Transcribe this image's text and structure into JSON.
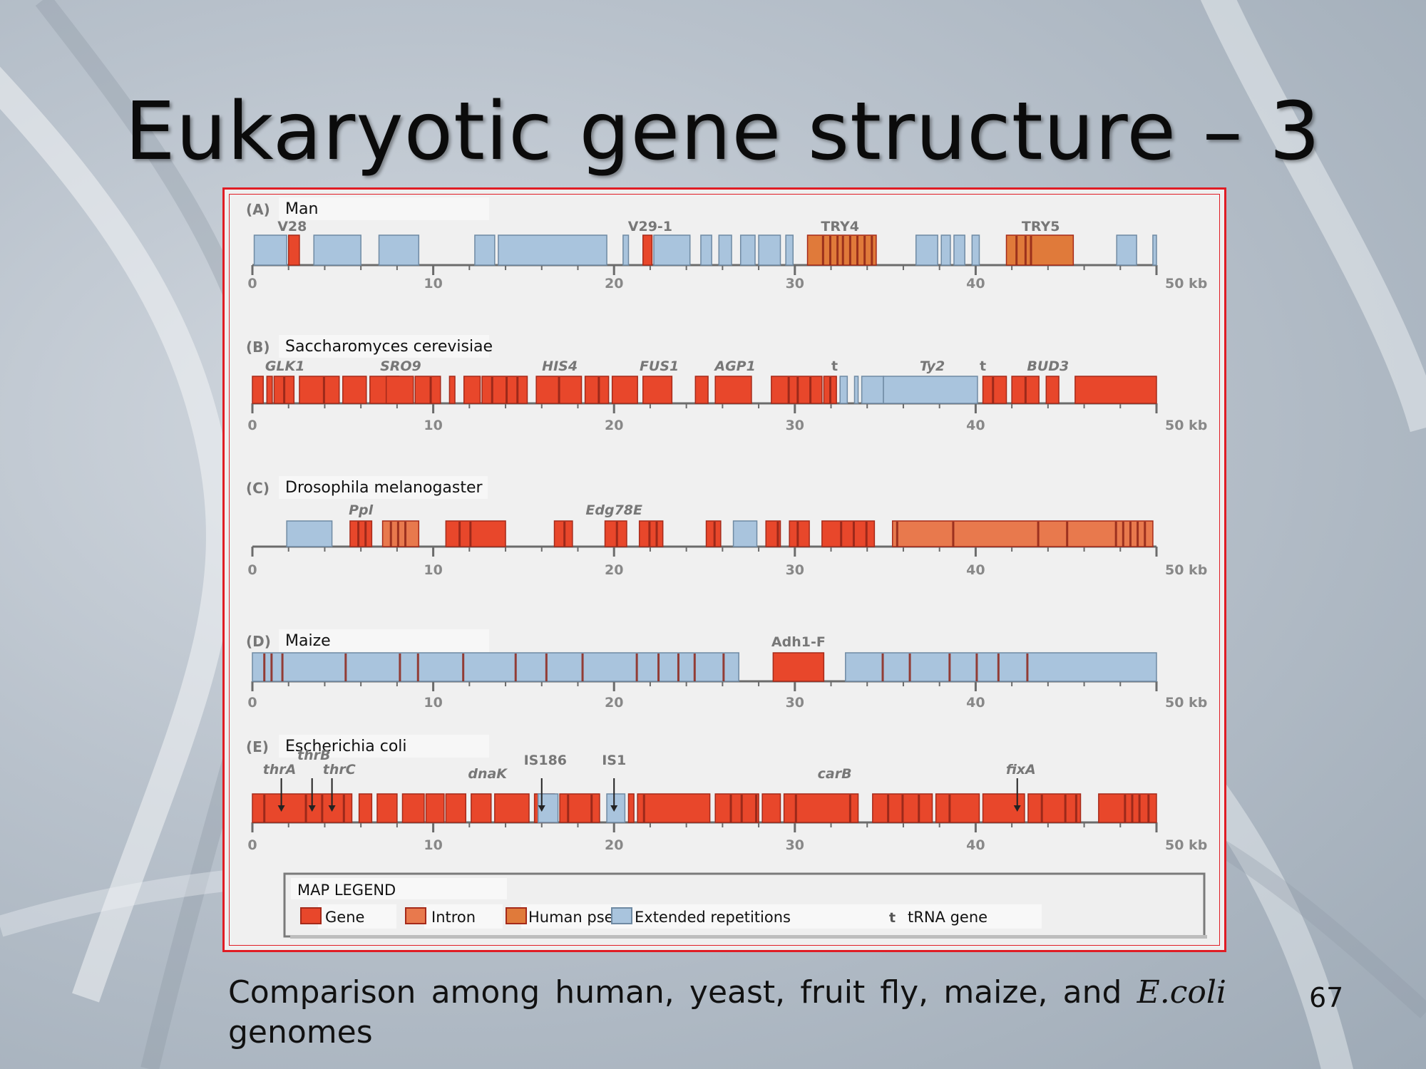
{
  "slide": {
    "title": "Eukaryotic gene structure – 3",
    "caption_prefix": "Comparison among human, yeast, fruit fly, maize, and ",
    "caption_emph": "E.coli",
    "caption_line2": "genomes",
    "page_number": "67"
  },
  "colors": {
    "gene": "#e8472b",
    "gene_stroke": "#a52a1a",
    "intron": "#e8794d",
    "pseudo": "#e07a3a",
    "repeat": "#a9c4dd",
    "repeat_stroke": "#6f8aa3",
    "axis": "#6b6b6b",
    "frame": "#e01c24"
  },
  "axis_ticks": [
    "0",
    "10",
    "20",
    "30",
    "40",
    "50 kb"
  ],
  "panels": [
    {
      "id": "A",
      "tag": "(A)",
      "organism": "Man",
      "gene_labels": [
        {
          "text": "V28",
          "kb": 2.2,
          "italic": false
        },
        {
          "text": "V29-1",
          "kb": 22,
          "italic": false
        },
        {
          "text": "TRY4",
          "kb": 32.5,
          "italic": false
        },
        {
          "text": "TRY5",
          "kb": 43.6,
          "italic": false
        }
      ],
      "features": [
        {
          "t": "repeat",
          "s": 0.1,
          "e": 1.9
        },
        {
          "t": "gene",
          "s": 2.0,
          "e": 2.6
        },
        {
          "t": "repeat",
          "s": 3.4,
          "e": 6.0
        },
        {
          "t": "repeat",
          "s": 7.0,
          "e": 9.2
        },
        {
          "t": "repeat",
          "s": 12.3,
          "e": 13.4
        },
        {
          "t": "repeat",
          "s": 13.6,
          "e": 19.6
        },
        {
          "t": "repeat",
          "s": 20.5,
          "e": 20.8
        },
        {
          "t": "gene",
          "s": 21.6,
          "e": 22.1
        },
        {
          "t": "repeat",
          "s": 22.2,
          "e": 24.2
        },
        {
          "t": "repeat",
          "s": 24.8,
          "e": 25.4
        },
        {
          "t": "repeat",
          "s": 25.8,
          "e": 26.5
        },
        {
          "t": "repeat",
          "s": 27.0,
          "e": 27.8
        },
        {
          "t": "repeat",
          "s": 28.0,
          "e": 29.2
        },
        {
          "t": "repeat",
          "s": 29.5,
          "e": 29.9
        },
        {
          "t": "pseudo",
          "s": 30.7,
          "e": 34.5
        },
        {
          "t": "repeat",
          "s": 36.7,
          "e": 37.9
        },
        {
          "t": "repeat",
          "s": 38.1,
          "e": 38.6
        },
        {
          "t": "repeat",
          "s": 38.8,
          "e": 39.4
        },
        {
          "t": "repeat",
          "s": 39.8,
          "e": 40.2
        },
        {
          "t": "pseudo",
          "s": 41.7,
          "e": 45.4
        },
        {
          "t": "repeat",
          "s": 47.8,
          "e": 48.9
        },
        {
          "t": "repeat",
          "s": 49.8,
          "e": 50.0
        }
      ],
      "stripes": [
        31.5,
        31.9,
        32.3,
        32.6,
        33.0,
        33.4,
        33.8,
        34.2,
        42.2,
        42.7,
        43.0
      ]
    },
    {
      "id": "B",
      "tag": "(B)",
      "organism": "Saccharomyces cerevisiae",
      "gene_labels": [
        {
          "text": "GLK1",
          "kb": 1.8,
          "italic": true
        },
        {
          "text": "SRO9",
          "kb": 8.2,
          "italic": true
        },
        {
          "text": "HIS4",
          "kb": 17.0,
          "italic": true
        },
        {
          "text": "FUS1",
          "kb": 22.5,
          "italic": true
        },
        {
          "text": "AGP1",
          "kb": 26.7,
          "italic": true
        },
        {
          "text": "t",
          "kb": 32.2,
          "italic": false
        },
        {
          "text": "Ty2",
          "kb": 37.6,
          "italic": true
        },
        {
          "text": "t",
          "kb": 40.4,
          "italic": false
        },
        {
          "text": "BUD3",
          "kb": 44.0,
          "italic": true
        }
      ],
      "features": [
        {
          "t": "gene",
          "s": 0.0,
          "e": 0.6
        },
        {
          "t": "gene",
          "s": 0.8,
          "e": 1.1
        },
        {
          "t": "gene",
          "s": 1.2,
          "e": 2.3
        },
        {
          "t": "gene",
          "s": 2.6,
          "e": 4.8
        },
        {
          "t": "gene",
          "s": 5.0,
          "e": 6.3
        },
        {
          "t": "gene",
          "s": 6.5,
          "e": 8.1
        },
        {
          "t": "gene",
          "s": 7.4,
          "e": 8.9
        },
        {
          "t": "gene",
          "s": 9.0,
          "e": 10.4
        },
        {
          "t": "gene",
          "s": 10.9,
          "e": 11.2
        },
        {
          "t": "gene",
          "s": 11.7,
          "e": 12.6
        },
        {
          "t": "gene",
          "s": 12.7,
          "e": 15.2
        },
        {
          "t": "gene",
          "s": 15.7,
          "e": 18.2
        },
        {
          "t": "gene",
          "s": 18.4,
          "e": 19.7
        },
        {
          "t": "gene",
          "s": 19.9,
          "e": 21.3
        },
        {
          "t": "gene",
          "s": 21.6,
          "e": 23.2
        },
        {
          "t": "gene",
          "s": 24.5,
          "e": 25.2
        },
        {
          "t": "gene",
          "s": 25.6,
          "e": 27.6
        },
        {
          "t": "gene",
          "s": 28.7,
          "e": 31.5
        },
        {
          "t": "gene",
          "s": 31.6,
          "e": 32.3
        },
        {
          "t": "repeat",
          "s": 32.5,
          "e": 32.9
        },
        {
          "t": "repeat",
          "s": 33.3,
          "e": 33.5
        },
        {
          "t": "repeat",
          "s": 33.7,
          "e": 34.9
        },
        {
          "t": "repeat",
          "s": 34.9,
          "e": 40.1
        },
        {
          "t": "gene",
          "s": 40.4,
          "e": 41.7
        },
        {
          "t": "gene",
          "s": 42.0,
          "e": 43.5
        },
        {
          "t": "gene",
          "s": 43.9,
          "e": 44.6
        },
        {
          "t": "gene",
          "s": 45.5,
          "e": 50.0
        }
      ],
      "stripes": [
        1.7,
        3.9,
        9.8,
        13.2,
        14.0,
        14.6,
        16.9,
        19.1,
        29.6,
        30.1,
        30.8,
        31.9,
        40.9,
        42.7
      ]
    },
    {
      "id": "C",
      "tag": "(C)",
      "organism": "Drosophila melanogaster",
      "gene_labels": [
        {
          "text": "Ppl",
          "kb": 6.0,
          "italic": true
        },
        {
          "text": "Edg78E",
          "kb": 20.0,
          "italic": true
        }
      ],
      "features": [
        {
          "t": "repeat",
          "s": 1.9,
          "e": 4.4
        },
        {
          "t": "gene",
          "s": 5.4,
          "e": 6.6
        },
        {
          "t": "intron",
          "s": 7.2,
          "e": 9.2
        },
        {
          "t": "gene",
          "s": 10.7,
          "e": 14.0
        },
        {
          "t": "gene",
          "s": 16.7,
          "e": 17.7
        },
        {
          "t": "gene",
          "s": 19.5,
          "e": 20.7
        },
        {
          "t": "gene",
          "s": 21.4,
          "e": 22.7
        },
        {
          "t": "gene",
          "s": 25.1,
          "e": 25.9
        },
        {
          "t": "repeat",
          "s": 26.6,
          "e": 27.9
        },
        {
          "t": "gene",
          "s": 28.4,
          "e": 29.2
        },
        {
          "t": "gene",
          "s": 29.7,
          "e": 30.8
        },
        {
          "t": "gene",
          "s": 31.5,
          "e": 34.4
        },
        {
          "t": "intron",
          "s": 35.4,
          "e": 49.8
        }
      ],
      "stripes": [
        5.8,
        6.2,
        7.6,
        8.0,
        8.4,
        11.4,
        12.0,
        17.2,
        20.1,
        21.9,
        22.3,
        25.5,
        29.0,
        30.1,
        32.5,
        33.2,
        33.9,
        35.6,
        38.7,
        43.4,
        45.0,
        47.7,
        48.1,
        48.5,
        48.9,
        49.3
      ]
    },
    {
      "id": "D",
      "tag": "(D)",
      "organism": "Maize",
      "gene_labels": [
        {
          "text": "Adh1-F",
          "kb": 30.2,
          "italic": false
        }
      ],
      "features": [
        {
          "t": "repeat",
          "s": 0.0,
          "e": 26.9
        },
        {
          "t": "gene",
          "s": 28.8,
          "e": 31.6
        },
        {
          "t": "repeat",
          "s": 32.8,
          "e": 50.0
        }
      ],
      "stripes": [
        0.6,
        1.0,
        1.6,
        5.1,
        8.1,
        9.1,
        11.6,
        14.5,
        16.2,
        18.2,
        21.2,
        22.4,
        23.5,
        24.4,
        26.0,
        34.8,
        36.3,
        38.5,
        40.0,
        41.2,
        42.8
      ]
    },
    {
      "id": "E",
      "tag": "(E)",
      "organism": "Escherichia coli",
      "gene_labels": [
        {
          "text": "thrA",
          "kb": 1.5,
          "italic": true
        },
        {
          "text": "thrB",
          "kb": 3.4,
          "italic": true
        },
        {
          "text": "thrC",
          "kb": 4.8,
          "italic": true
        },
        {
          "text": "dnaK",
          "kb": 13.0,
          "italic": true
        },
        {
          "text": "IS186",
          "kb": 16.2,
          "italic": false
        },
        {
          "text": "IS1",
          "kb": 20.0,
          "italic": false
        },
        {
          "text": "carB",
          "kb": 32.2,
          "italic": true
        },
        {
          "text": "fixA",
          "kb": 42.5,
          "italic": true
        }
      ],
      "arrows": [
        1.6,
        3.3,
        4.4,
        16.0,
        20.0,
        42.3
      ],
      "features": [
        {
          "t": "gene",
          "s": 0.0,
          "e": 5.5
        },
        {
          "t": "gene",
          "s": 5.9,
          "e": 6.6
        },
        {
          "t": "gene",
          "s": 6.9,
          "e": 8.0
        },
        {
          "t": "gene",
          "s": 8.3,
          "e": 9.5
        },
        {
          "t": "gene",
          "s": 9.6,
          "e": 10.6
        },
        {
          "t": "gene",
          "s": 10.7,
          "e": 11.8
        },
        {
          "t": "gene",
          "s": 12.1,
          "e": 13.2
        },
        {
          "t": "gene",
          "s": 13.4,
          "e": 15.3
        },
        {
          "t": "gene",
          "s": 15.6,
          "e": 16.7
        },
        {
          "t": "repeat",
          "s": 15.8,
          "e": 16.9
        },
        {
          "t": "gene",
          "s": 17.0,
          "e": 19.2
        },
        {
          "t": "repeat",
          "s": 19.6,
          "e": 20.6
        },
        {
          "t": "gene",
          "s": 20.8,
          "e": 21.1
        },
        {
          "t": "gene",
          "s": 21.3,
          "e": 25.3
        },
        {
          "t": "gene",
          "s": 25.6,
          "e": 28.0
        },
        {
          "t": "gene",
          "s": 28.2,
          "e": 29.2
        },
        {
          "t": "gene",
          "s": 29.4,
          "e": 33.5
        },
        {
          "t": "gene",
          "s": 34.3,
          "e": 37.6
        },
        {
          "t": "gene",
          "s": 37.8,
          "e": 40.2
        },
        {
          "t": "gene",
          "s": 40.4,
          "e": 42.7
        },
        {
          "t": "gene",
          "s": 42.9,
          "e": 45.8
        },
        {
          "t": "gene",
          "s": 46.8,
          "e": 50.0
        }
      ],
      "stripes": [
        0.6,
        2.9,
        3.8,
        5.0,
        17.4,
        18.7,
        21.6,
        26.4,
        27.0,
        27.8,
        30.0,
        33.0,
        35.1,
        35.9,
        36.8,
        38.5,
        43.6,
        44.9,
        45.5,
        48.2,
        48.6,
        49.0,
        49.5
      ]
    }
  ],
  "legend": {
    "title": "MAP LEGEND",
    "items": [
      {
        "label": "Gene",
        "color": "#e8472b"
      },
      {
        "label": "Intron",
        "color": "#e8794d"
      },
      {
        "label": "Human pseudo-gene",
        "color": "#e07a3a"
      },
      {
        "label": "Extended repetitions",
        "color": "#a9c4dd"
      }
    ],
    "trna_symbol": "t",
    "trna_label": "tRNA gene"
  }
}
